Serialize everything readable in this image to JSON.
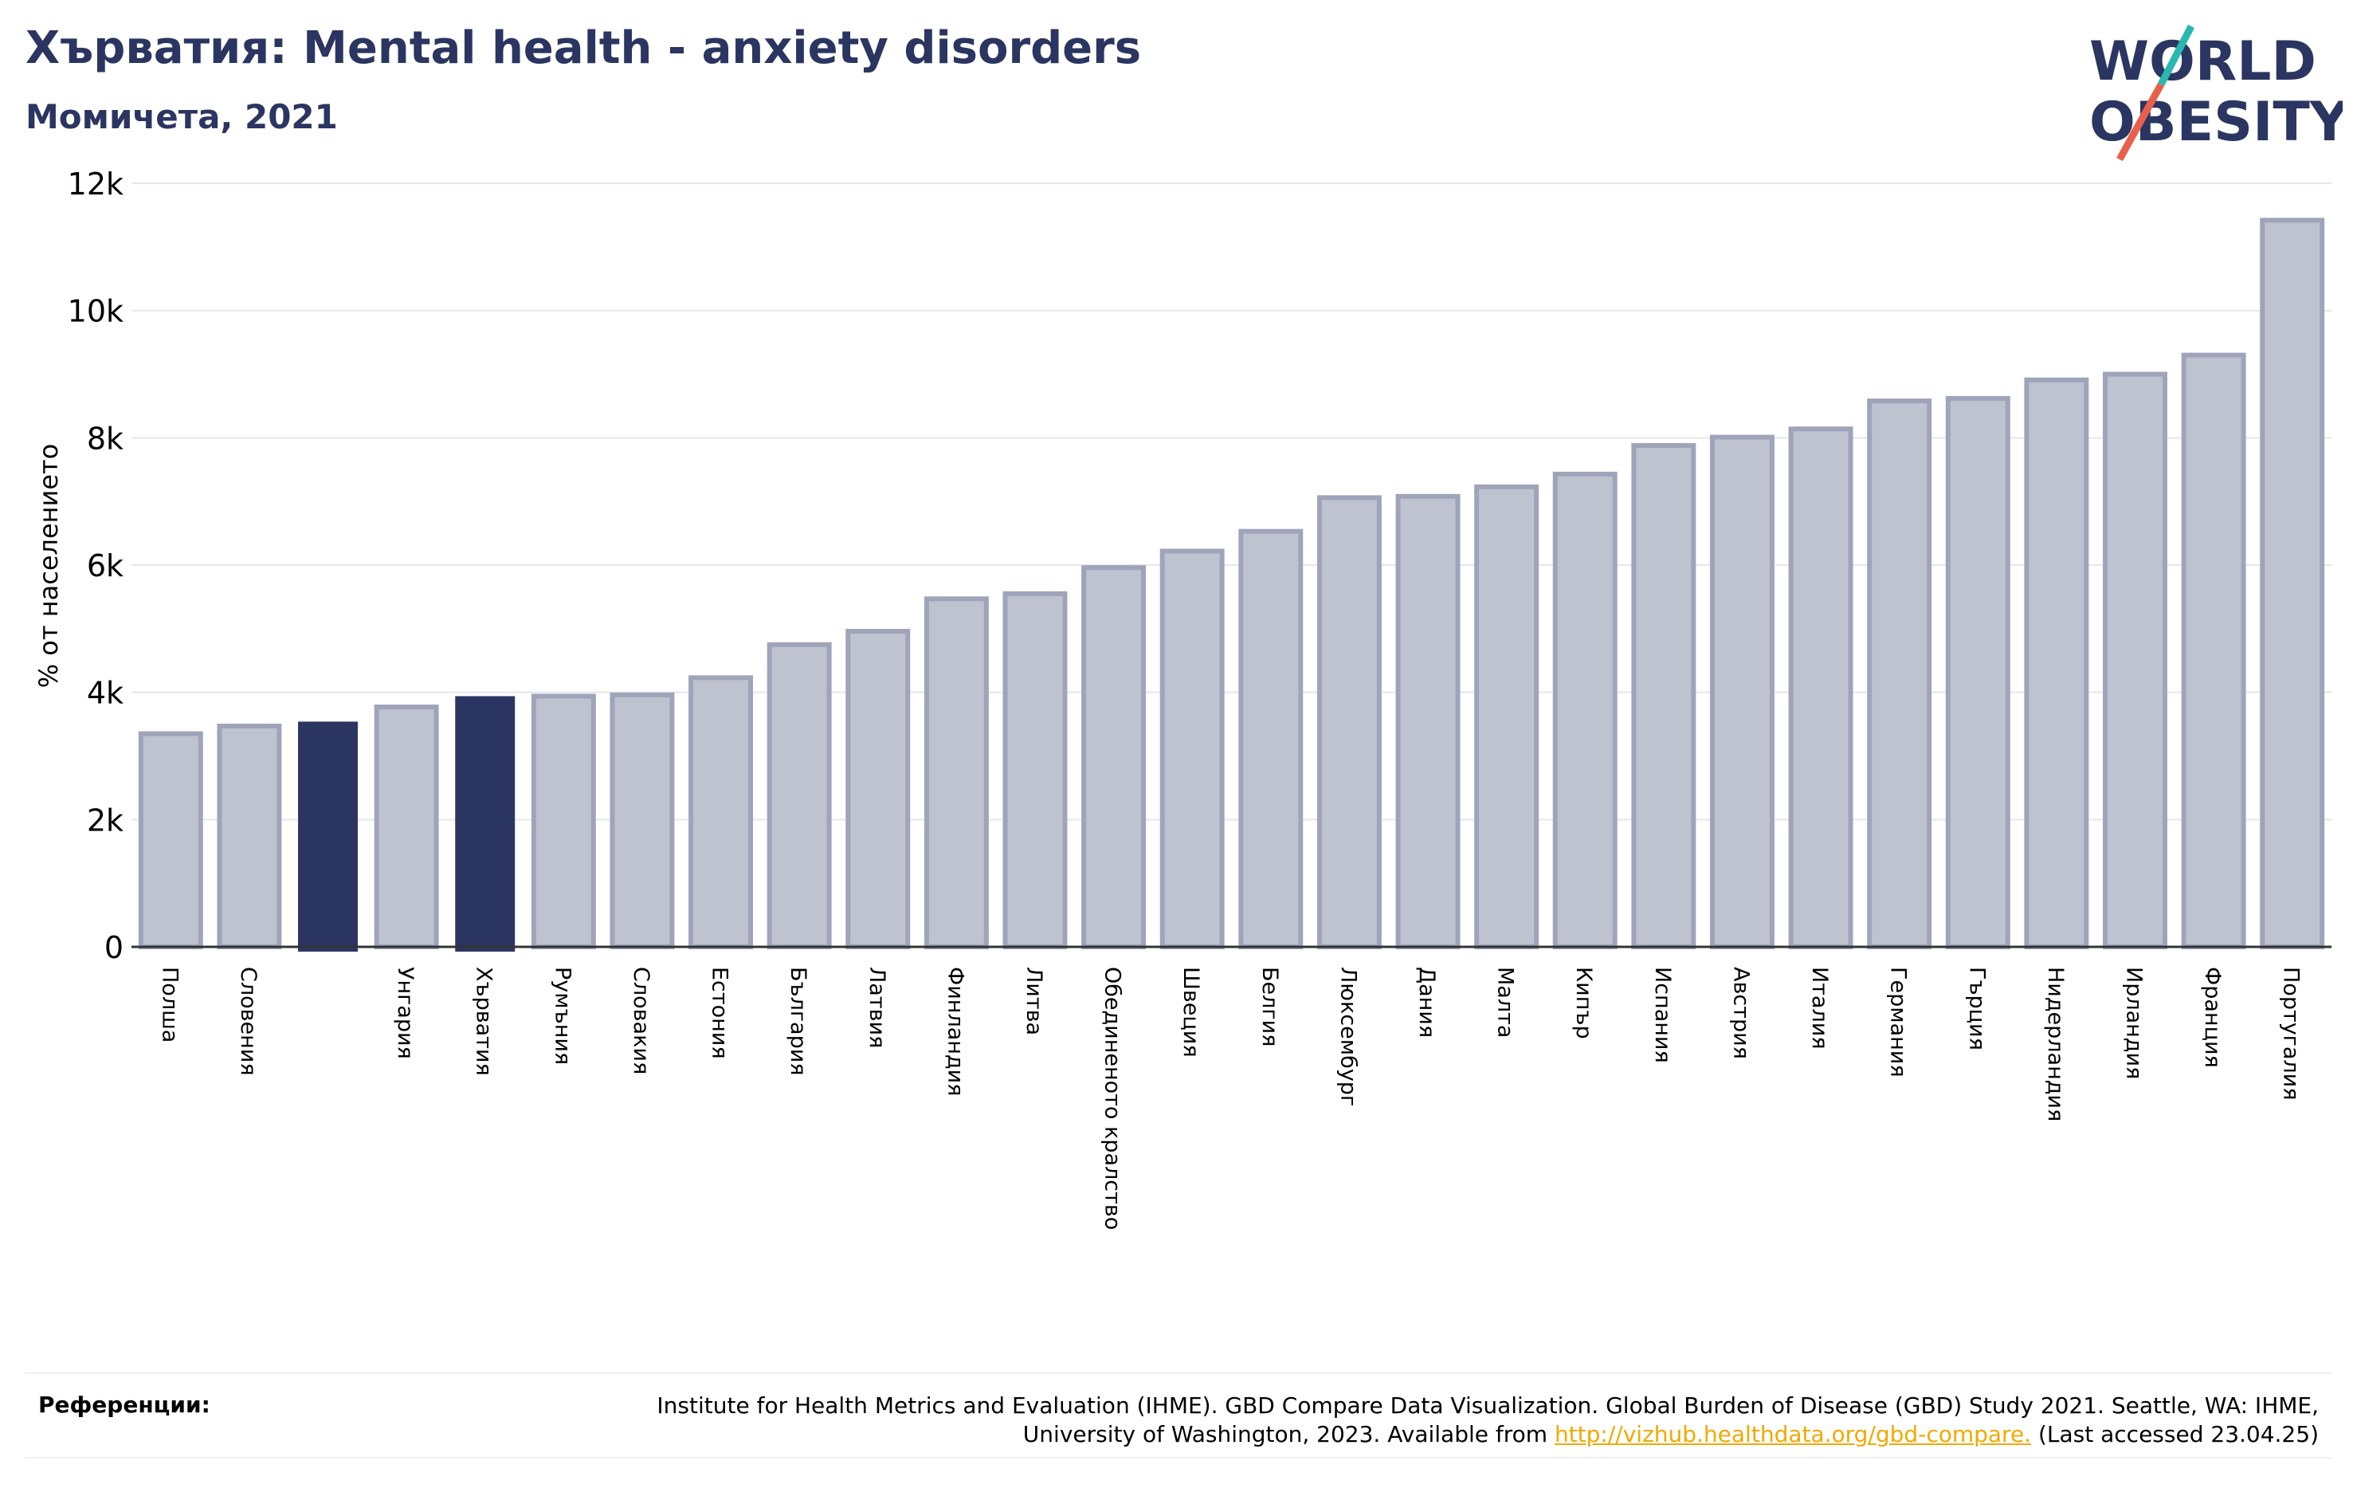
{
  "header": {
    "title": "Хърватия: Mental health - anxiety disorders",
    "subtitle": "Момичета, 2021"
  },
  "logo": {
    "line1": "WORLD",
    "line2": "OBESITY",
    "colors": {
      "text": "#2b3561",
      "slash_top": "#2ab7b0",
      "slash_bottom": "#e8604c"
    }
  },
  "colors": {
    "bar_default": "#bfc2cf",
    "bar_default_edge": "#9fa4ba",
    "bar_highlight": "#2b3561",
    "grid": "#e6e7ec",
    "axis": "#333333"
  },
  "chart_data": {
    "type": "bar",
    "ylabel": "% от населението",
    "ylim": [
      0,
      12000
    ],
    "yticks": [
      {
        "value": 0,
        "label": "0"
      },
      {
        "value": 2000,
        "label": "2k"
      },
      {
        "value": 4000,
        "label": "4k"
      },
      {
        "value": 6000,
        "label": "6k"
      },
      {
        "value": 8000,
        "label": "8k"
      },
      {
        "value": 10000,
        "label": "10k"
      },
      {
        "value": 12000,
        "label": "12k"
      }
    ],
    "grid": true,
    "categories": [
      "Полша",
      "Словения",
      "",
      "Унгария",
      "Хърватия",
      "Румъния",
      "Словакия",
      "Естония",
      "България",
      "Латвия",
      "Финландия",
      "Литва",
      "Обединеното кралство",
      "Швеция",
      "Белгия",
      "Люксембург",
      "Дания",
      "Малта",
      "Кипър",
      "Испания",
      "Австрия",
      "Италия",
      "Германия",
      "Гърция",
      "Нидерландия",
      "Ирландия",
      "Франция",
      "Португалия"
    ],
    "values": [
      3350,
      3470,
      3540,
      3770,
      3940,
      3940,
      3960,
      4230,
      4750,
      4960,
      5470,
      5550,
      5960,
      6220,
      6530,
      7060,
      7080,
      7230,
      7430,
      7880,
      8010,
      8140,
      8580,
      8620,
      8910,
      9000,
      9300,
      11420
    ],
    "highlighted": [
      2,
      4
    ]
  },
  "footer": {
    "label": "Референции:",
    "text_before": "Institute for Health Metrics and Evaluation (IHME). GBD Compare Data Visualization. Global Burden of Disease (GBD) Study 2021. Seattle, WA: IHME, University of Washington, 2023. Available from ",
    "link": "http://vizhub.healthdata.org/gbd-compare.",
    "text_after": " (Last accessed 23.04.25)"
  }
}
